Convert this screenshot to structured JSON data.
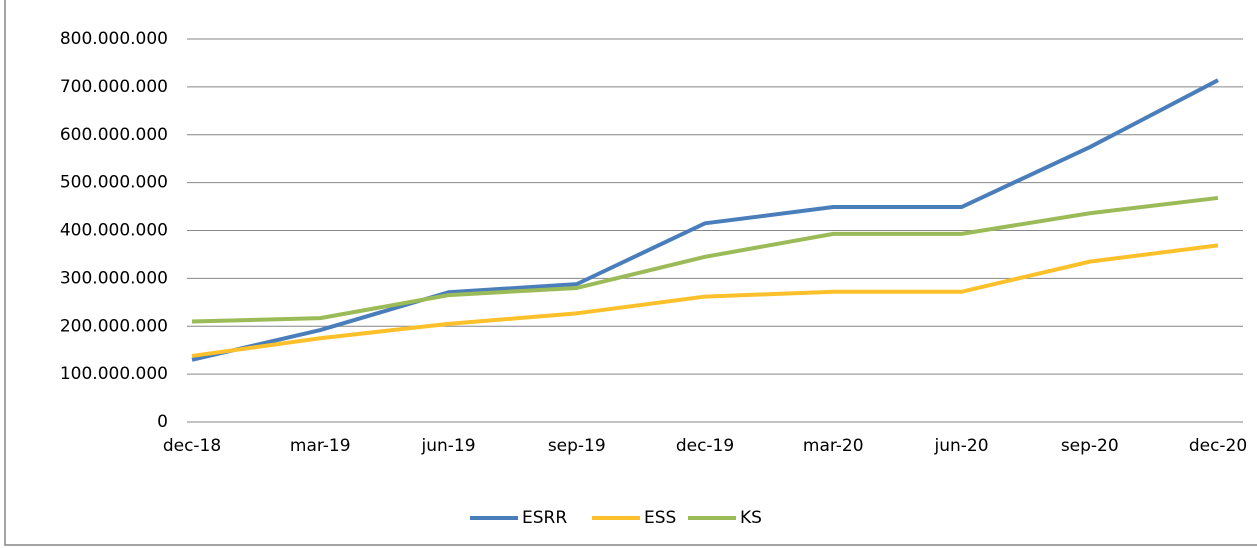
{
  "chart_data": {
    "type": "line",
    "categories": [
      "dec-18",
      "mar-19",
      "jun-19",
      "sep-19",
      "dec-19",
      "mar-20",
      "jun-20",
      "sep-20",
      "dec-20"
    ],
    "series": [
      {
        "name": "ESRR",
        "color": "#4a7ebb",
        "values": [
          130000000,
          192000000,
          271000000,
          288000000,
          415000000,
          449000000,
          449000000,
          574000000,
          714000000
        ]
      },
      {
        "name": "ESS",
        "color": "#fcc02b",
        "values": [
          138000000,
          175000000,
          205000000,
          227000000,
          262000000,
          272000000,
          272000000,
          335000000,
          369000000
        ]
      },
      {
        "name": "KS",
        "color": "#9bbb59",
        "values": [
          210000000,
          217000000,
          265000000,
          280000000,
          345000000,
          393000000,
          393000000,
          436000000,
          468000000
        ]
      }
    ],
    "ylim": [
      0,
      800000000
    ],
    "yticks": [
      0,
      {
        "value": 100000000,
        "label": "100.000.000"
      },
      {
        "value": 200000000,
        "label": "200.000.000"
      },
      {
        "value": 300000000,
        "label": "300.000.000"
      },
      {
        "value": 400000000,
        "label": "400.000.000"
      },
      {
        "value": 500000000,
        "label": "500.000.000"
      },
      {
        "value": 600000000,
        "label": "600.000.000"
      },
      {
        "value": 700000000,
        "label": "700.000.000"
      },
      {
        "value": 800000000,
        "label": "800.000.000"
      }
    ],
    "grid": true,
    "legend": "bottom"
  }
}
